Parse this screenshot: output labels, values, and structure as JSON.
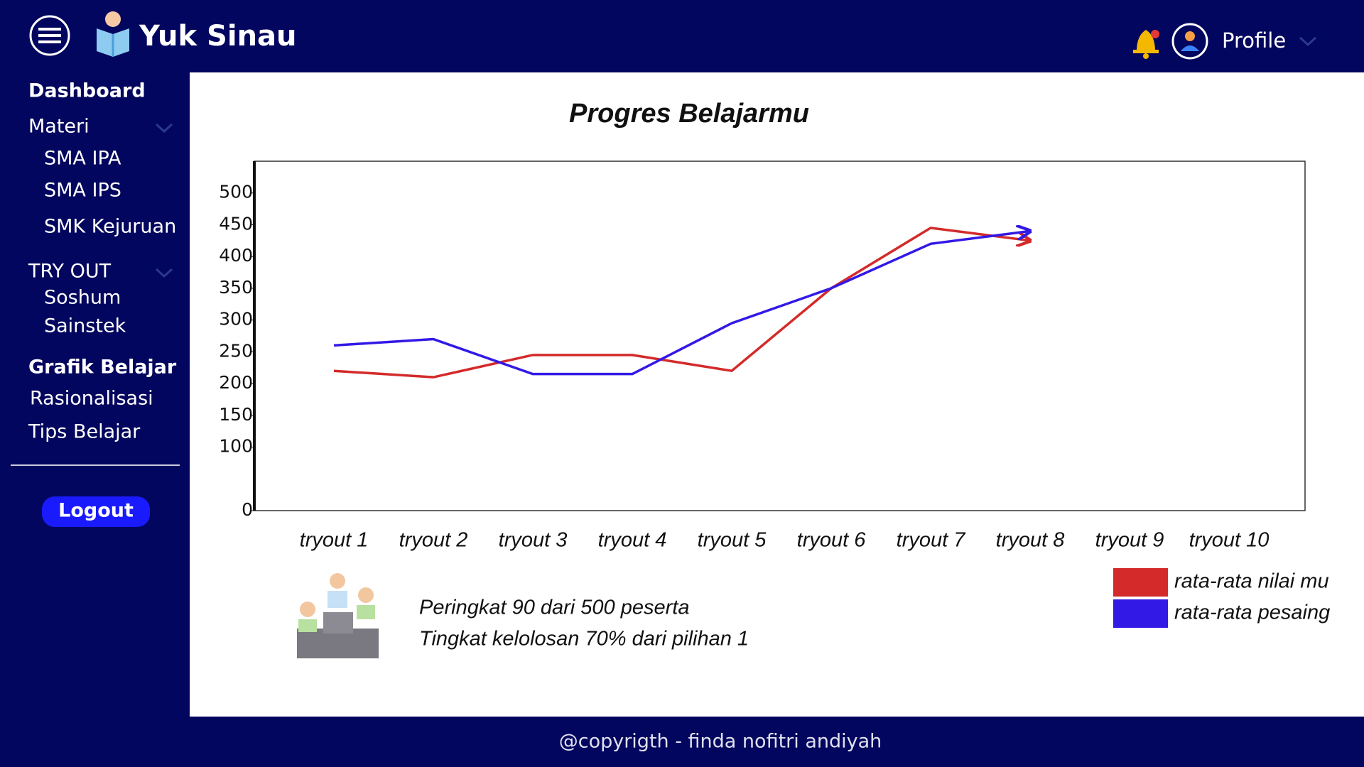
{
  "header": {
    "app_name": "Yuk Sinau",
    "profile": "Profile"
  },
  "sidebar": {
    "items": [
      "Dashboard",
      "Materi",
      "SMA IPA",
      "SMA IPS",
      "SMK Kejuruan",
      "TRY OUT",
      "Soshum",
      "Sainstek",
      "Grafik Belajar",
      "Rasionalisasi",
      "Tips Belajar"
    ],
    "logout": "Logout"
  },
  "chart_data": {
    "type": "line",
    "title": "Progres Belajarmu",
    "categories": [
      "tryout 1",
      "tryout 2",
      "tryout 3",
      "tryout 4",
      "tryout 5",
      "tryout 6",
      "tryout 7",
      "tryout 8",
      "tryout 9",
      "tryout 10"
    ],
    "series": [
      {
        "name": "rata-rata nilai mu",
        "color": "#d42a2a",
        "values": [
          220,
          210,
          245,
          245,
          220,
          350,
          445,
          425,
          null,
          null
        ]
      },
      {
        "name": "rata-rata pesaing",
        "color": "#3219e6",
        "values": [
          260,
          270,
          215,
          215,
          295,
          350,
          420,
          440,
          null,
          null
        ]
      }
    ],
    "ylim": [
      0,
      550
    ],
    "yticks": [
      0,
      100,
      150,
      200,
      250,
      300,
      350,
      400,
      450,
      500
    ]
  },
  "info": [
    "Peringkat 90 dari 500 peserta",
    "Tingkat kelolosan 70% dari pilihan 1"
  ],
  "footer": "@copyrigth - finda nofitri andiyah"
}
